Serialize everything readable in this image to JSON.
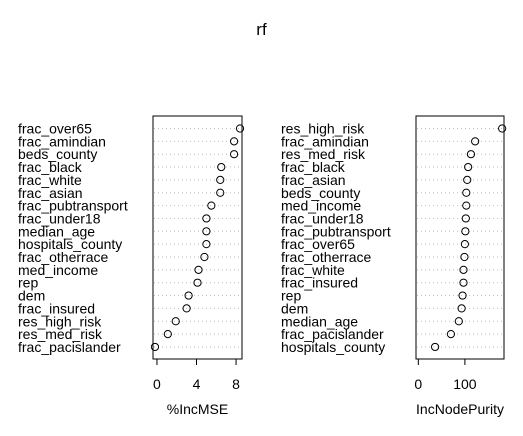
{
  "chart_data": {
    "title": "rf",
    "panels": [
      {
        "type": "scatter",
        "xlabel": "%IncMSE",
        "xlim": [
          -0.4,
          8.6
        ],
        "xticks": [
          0,
          4,
          8
        ],
        "xtick_labels": [
          "0",
          "4",
          "8"
        ],
        "grid": "dotted-horizontal",
        "variables": [
          {
            "name": "frac_over65",
            "value": 8.4
          },
          {
            "name": "frac_amindian",
            "value": 7.8
          },
          {
            "name": "beds_county",
            "value": 7.8
          },
          {
            "name": "frac_black",
            "value": 6.5
          },
          {
            "name": "frac_white",
            "value": 6.4
          },
          {
            "name": "frac_asian",
            "value": 6.4
          },
          {
            "name": "frac_pubtransport",
            "value": 5.5
          },
          {
            "name": "frac_under18",
            "value": 5.0
          },
          {
            "name": "median_age",
            "value": 5.0
          },
          {
            "name": "hospitals_county",
            "value": 5.0
          },
          {
            "name": "frac_otherrace",
            "value": 4.8
          },
          {
            "name": "med_income",
            "value": 4.2
          },
          {
            "name": "rep",
            "value": 4.1
          },
          {
            "name": "dem",
            "value": 3.2
          },
          {
            "name": "frac_insured",
            "value": 3.0
          },
          {
            "name": "res_high_risk",
            "value": 1.9
          },
          {
            "name": "res_med_risk",
            "value": 1.1
          },
          {
            "name": "frac_pacislander",
            "value": -0.2
          }
        ]
      },
      {
        "type": "scatter",
        "xlabel": "IncNodePurity",
        "xlim": [
          -5,
          184
        ],
        "xticks": [
          0,
          100
        ],
        "xtick_labels": [
          "0",
          "100"
        ],
        "grid": "dotted-horizontal",
        "variables": [
          {
            "name": "res_high_risk",
            "value": 180
          },
          {
            "name": "frac_amindian",
            "value": 122
          },
          {
            "name": "res_med_risk",
            "value": 113
          },
          {
            "name": "frac_black",
            "value": 107
          },
          {
            "name": "frac_asian",
            "value": 105
          },
          {
            "name": "beds_county",
            "value": 103
          },
          {
            "name": "med_income",
            "value": 103
          },
          {
            "name": "frac_under18",
            "value": 102
          },
          {
            "name": "frac_pubtransport",
            "value": 101
          },
          {
            "name": "frac_over65",
            "value": 100
          },
          {
            "name": "frac_otherrace",
            "value": 99
          },
          {
            "name": "frac_white",
            "value": 97
          },
          {
            "name": "frac_insured",
            "value": 97
          },
          {
            "name": "rep",
            "value": 95
          },
          {
            "name": "dem",
            "value": 93
          },
          {
            "name": "median_age",
            "value": 87
          },
          {
            "name": "frac_pacislander",
            "value": 70
          },
          {
            "name": "hospitals_county",
            "value": 36
          }
        ]
      }
    ]
  }
}
